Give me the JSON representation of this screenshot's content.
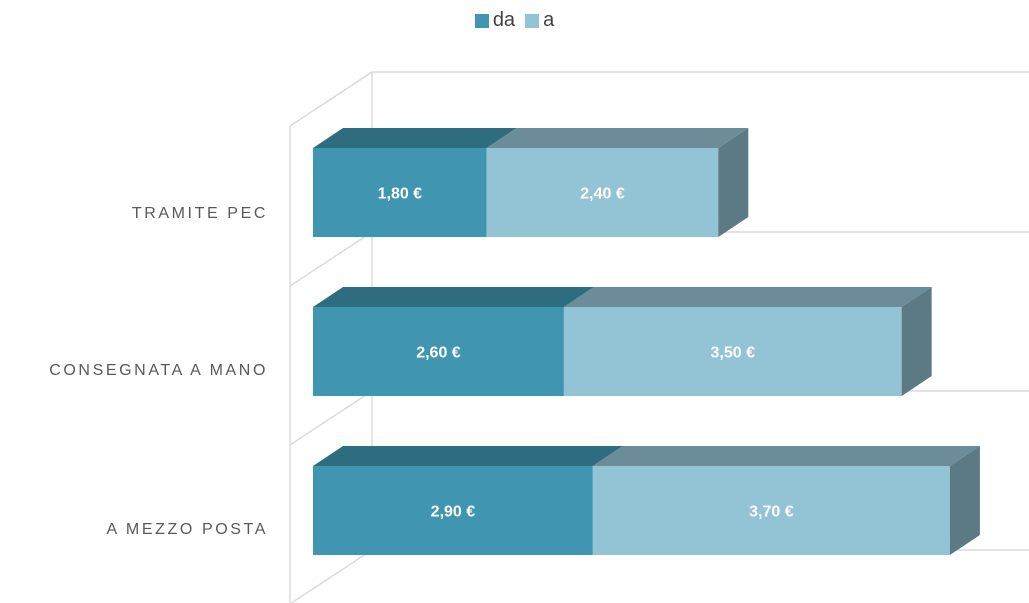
{
  "chart_data": {
    "type": "bar",
    "orientation": "horizontal",
    "stacked": true,
    "style": "3d",
    "categories": [
      "TRAMITE PEC",
      "CONSEGNATA A MANO",
      "A MEZZO POSTA"
    ],
    "series": [
      {
        "name": "da",
        "values": [
          1.8,
          2.6,
          2.9
        ],
        "labels": [
          "1,80 €",
          "2,60 €",
          "2,90 €"
        ],
        "color": "#4096b1"
      },
      {
        "name": "a",
        "values": [
          2.4,
          3.5,
          3.7
        ],
        "labels": [
          "2,40 €",
          "3,50 €",
          "3,70 €"
        ],
        "color": "#93c4d5"
      }
    ],
    "xlim": [
      0,
      7
    ],
    "legend": "top-center",
    "grid": true,
    "value_axis_labels": false
  }
}
